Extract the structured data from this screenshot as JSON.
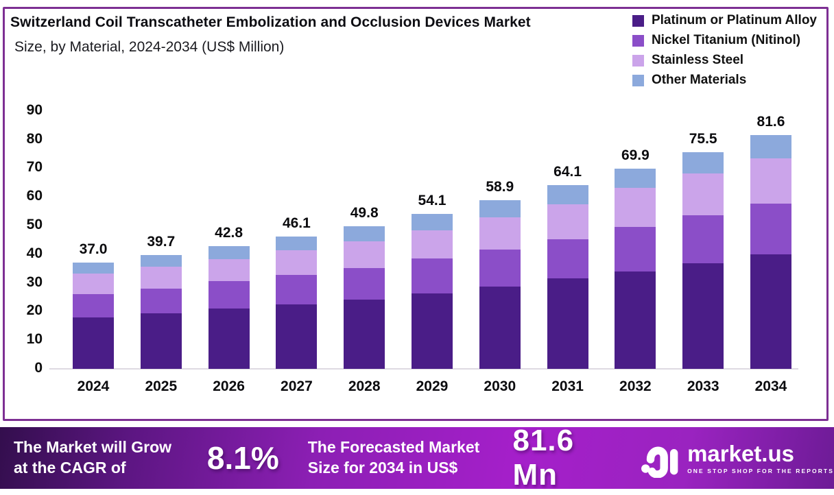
{
  "header": {
    "title_line1": "Switzerland Coil Transcatheter Embolization and Occlusion Devices Market",
    "title_line2": "Size, by Material, 2024-2034 (US$ Million)"
  },
  "chart_data": {
    "type": "bar",
    "stacked": true,
    "title": "Switzerland Coil Transcatheter Embolization and Occlusion Devices Market Size, by Material, 2024-2034 (US$ Million)",
    "categories": [
      "2024",
      "2025",
      "2026",
      "2027",
      "2028",
      "2029",
      "2030",
      "2031",
      "2032",
      "2033",
      "2034"
    ],
    "series": [
      {
        "name": "Platinum or Platinum Alloy",
        "color": "#4a1d87",
        "values": [
          18.0,
          19.3,
          21.0,
          22.4,
          24.2,
          26.3,
          28.7,
          31.5,
          33.9,
          36.9,
          40.0
        ]
      },
      {
        "name": "Nickel Titanium (Nitinol)",
        "color": "#8b4ec8",
        "values": [
          8.2,
          8.6,
          9.6,
          10.3,
          11.0,
          12.3,
          12.9,
          13.8,
          15.6,
          16.8,
          17.7
        ]
      },
      {
        "name": "Stainless Steel",
        "color": "#cba4ea",
        "values": [
          7.1,
          7.7,
          7.6,
          8.6,
          9.4,
          9.7,
          11.2,
          12.1,
          13.6,
          14.5,
          15.8
        ]
      },
      {
        "name": "Other Materials",
        "color": "#8ca9dc",
        "values": [
          3.7,
          4.1,
          4.6,
          4.8,
          5.2,
          5.8,
          6.1,
          6.7,
          6.8,
          7.3,
          8.1
        ]
      }
    ],
    "totals": [
      "37.0",
      "39.7",
      "42.8",
      "46.1",
      "49.8",
      "54.1",
      "58.9",
      "64.1",
      "69.9",
      "75.5",
      "81.6"
    ],
    "xlabel": "",
    "ylabel": "",
    "ylim": [
      0,
      90
    ],
    "yticks": [
      0,
      10,
      20,
      30,
      40,
      50,
      60,
      70,
      80,
      90
    ],
    "grid": false,
    "legend_position": "top-right"
  },
  "banner": {
    "cagr_label_line1": "The Market will Grow",
    "cagr_label_line2": "at the CAGR of",
    "cagr_value": "8.1%",
    "forecast_label_line1": "The Forecasted Market",
    "forecast_label_line2": "Size for 2034 in US$",
    "forecast_value": "81.6 Mn",
    "logo_wordmark": "market.us",
    "logo_tagline": "ONE STOP SHOP FOR THE REPORTS"
  },
  "colors": {
    "frame_border": "#7d2f93",
    "banner_gradient_start": "#330e4d",
    "banner_gradient_mid": "#a51fca",
    "banner_gradient_end": "#6d1b96",
    "axis_line": "#dedae2",
    "text": "#0b0b0e"
  }
}
